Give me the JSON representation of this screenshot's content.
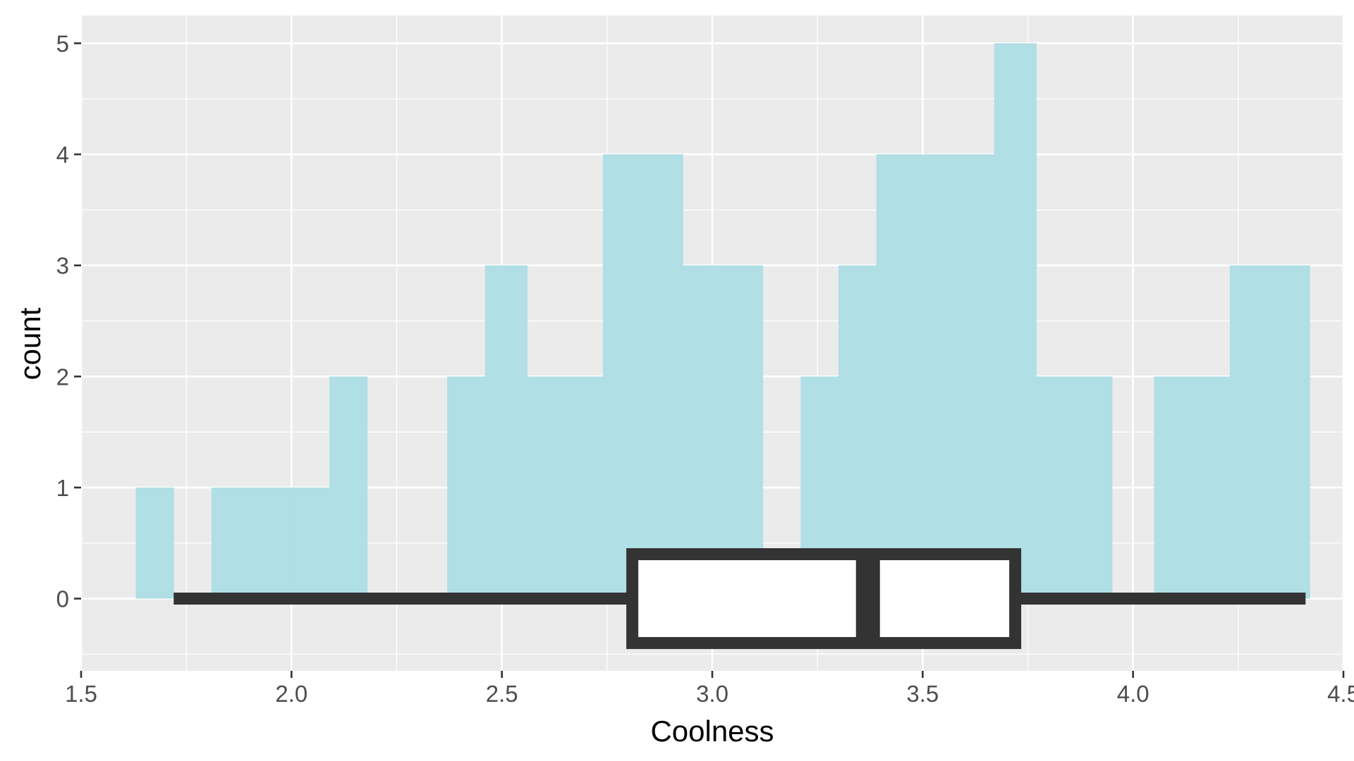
{
  "chart_data": {
    "type": "histogram",
    "xlabel": "Coolness",
    "ylabel": "count",
    "xlim": [
      1.5,
      4.5
    ],
    "ylim": [
      -0.65,
      5.25
    ],
    "x_ticks": [
      {
        "value": 1.5,
        "label": "1.5"
      },
      {
        "value": 2.0,
        "label": "2.0"
      },
      {
        "value": 2.5,
        "label": "2.5"
      },
      {
        "value": 3.0,
        "label": "3.0"
      },
      {
        "value": 3.5,
        "label": "3.5"
      },
      {
        "value": 4.0,
        "label": "4.0"
      },
      {
        "value": 4.5,
        "label": "4.5"
      }
    ],
    "y_ticks": [
      {
        "value": 0,
        "label": "0"
      },
      {
        "value": 1,
        "label": "1"
      },
      {
        "value": 2,
        "label": "2"
      },
      {
        "value": 3,
        "label": "3"
      },
      {
        "value": 4,
        "label": "4"
      },
      {
        "value": 5,
        "label": "5"
      }
    ],
    "grid": true,
    "bar_color": "#b0dfe5",
    "panel_background": "#ebebeb",
    "grid_color": "#ffffff",
    "bin_width": 0.093,
    "bins": [
      {
        "x_start": 1.63,
        "x_end": 1.72,
        "count": 1
      },
      {
        "x_start": 1.72,
        "x_end": 1.81,
        "count": 0
      },
      {
        "x_start": 1.81,
        "x_end": 1.91,
        "count": 1
      },
      {
        "x_start": 1.91,
        "x_end": 2.0,
        "count": 1
      },
      {
        "x_start": 2.0,
        "x_end": 2.09,
        "count": 1
      },
      {
        "x_start": 2.09,
        "x_end": 2.18,
        "count": 2
      },
      {
        "x_start": 2.18,
        "x_end": 2.28,
        "count": 0
      },
      {
        "x_start": 2.28,
        "x_end": 2.37,
        "count": 0
      },
      {
        "x_start": 2.37,
        "x_end": 2.46,
        "count": 2
      },
      {
        "x_start": 2.46,
        "x_end": 2.56,
        "count": 3
      },
      {
        "x_start": 2.56,
        "x_end": 2.65,
        "count": 2
      },
      {
        "x_start": 2.65,
        "x_end": 2.74,
        "count": 2
      },
      {
        "x_start": 2.74,
        "x_end": 2.84,
        "count": 4
      },
      {
        "x_start": 2.84,
        "x_end": 2.93,
        "count": 4
      },
      {
        "x_start": 2.93,
        "x_end": 3.02,
        "count": 3
      },
      {
        "x_start": 3.02,
        "x_end": 3.12,
        "count": 3
      },
      {
        "x_start": 3.12,
        "x_end": 3.21,
        "count": 0
      },
      {
        "x_start": 3.21,
        "x_end": 3.3,
        "count": 2
      },
      {
        "x_start": 3.3,
        "x_end": 3.39,
        "count": 3
      },
      {
        "x_start": 3.39,
        "x_end": 3.49,
        "count": 4
      },
      {
        "x_start": 3.49,
        "x_end": 3.58,
        "count": 4
      },
      {
        "x_start": 3.58,
        "x_end": 3.67,
        "count": 4
      },
      {
        "x_start": 3.67,
        "x_end": 3.77,
        "count": 5
      },
      {
        "x_start": 3.77,
        "x_end": 3.86,
        "count": 2
      },
      {
        "x_start": 3.86,
        "x_end": 3.95,
        "count": 2
      },
      {
        "x_start": 3.95,
        "x_end": 4.05,
        "count": 0
      },
      {
        "x_start": 4.05,
        "x_end": 4.14,
        "count": 2
      },
      {
        "x_start": 4.14,
        "x_end": 4.23,
        "count": 2
      },
      {
        "x_start": 4.23,
        "x_end": 4.33,
        "count": 3
      },
      {
        "x_start": 4.33,
        "x_end": 4.42,
        "count": 3
      }
    ],
    "boxplot": {
      "whisker_low": 1.72,
      "q1": 2.81,
      "median": 3.37,
      "q3": 3.72,
      "whisker_high": 4.41,
      "y_center": 0,
      "y_half_height": 0.4,
      "color": "#333333",
      "fill": "#ffffff"
    }
  }
}
